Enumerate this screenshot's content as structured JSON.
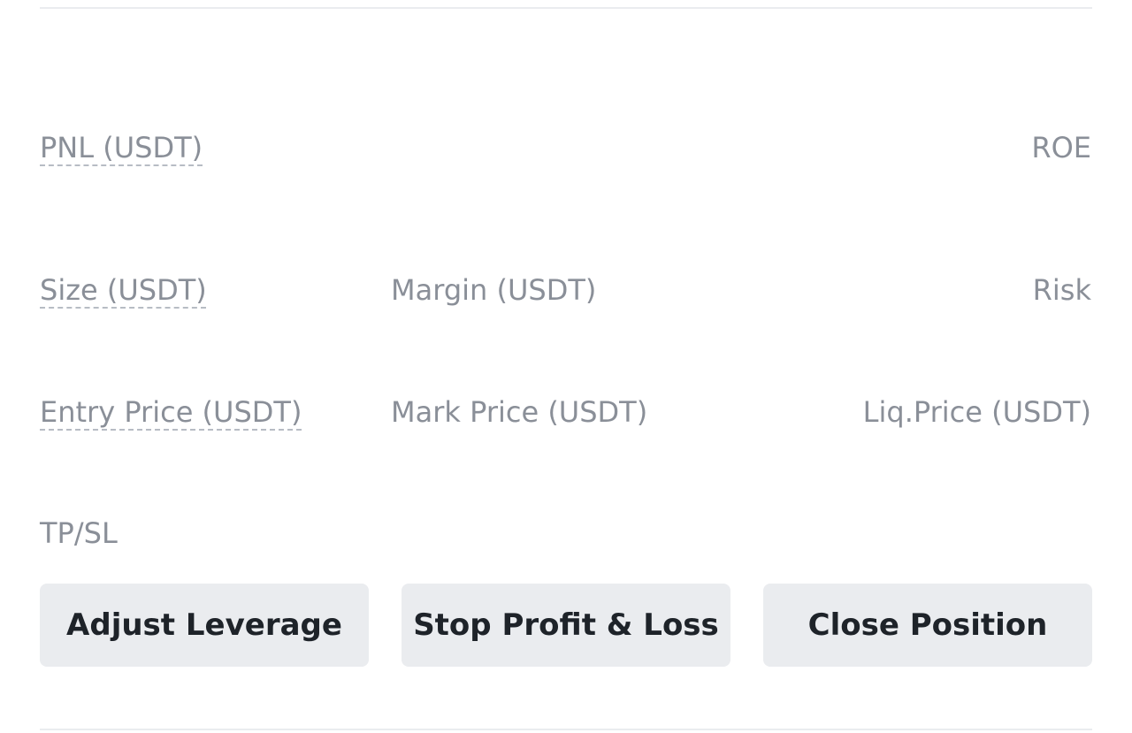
{
  "position": {
    "pnl_label": "PNL (USDT)",
    "roe_label": "ROE",
    "size_label": "Size (USDT)",
    "margin_label": "Margin (USDT)",
    "risk_label": "Risk",
    "entry_price_label": "Entry Price (USDT)",
    "mark_price_label": "Mark Price (USDT)",
    "liq_price_label": "Liq.Price (USDT)",
    "tpsl_label": "TP/SL"
  },
  "actions": {
    "adjust_leverage": "Adjust Leverage",
    "stop_profit_loss": "Stop Profit & Loss",
    "close_position": "Close Position"
  }
}
